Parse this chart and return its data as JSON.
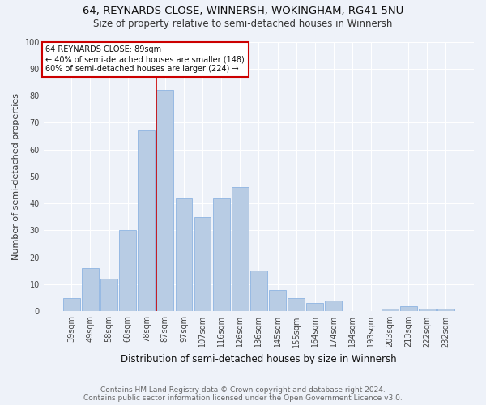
{
  "title": "64, REYNARDS CLOSE, WINNERSH, WOKINGHAM, RG41 5NU",
  "subtitle": "Size of property relative to semi-detached houses in Winnersh",
  "xlabel": "Distribution of semi-detached houses by size in Winnersh",
  "ylabel": "Number of semi-detached properties",
  "categories": [
    "39sqm",
    "49sqm",
    "58sqm",
    "68sqm",
    "78sqm",
    "87sqm",
    "97sqm",
    "107sqm",
    "116sqm",
    "126sqm",
    "136sqm",
    "145sqm",
    "155sqm",
    "164sqm",
    "174sqm",
    "184sqm",
    "193sqm",
    "203sqm",
    "213sqm",
    "222sqm",
    "232sqm"
  ],
  "values": [
    5,
    16,
    12,
    30,
    67,
    82,
    42,
    35,
    42,
    46,
    15,
    8,
    5,
    3,
    4,
    0,
    0,
    1,
    2,
    1,
    1
  ],
  "bar_color": "#b8cce4",
  "bar_edge_color": "#8db4e2",
  "property_line_index": 5,
  "annotation_text_line1": "64 REYNARDS CLOSE: 89sqm",
  "annotation_text_line2": "← 40% of semi-detached houses are smaller (148)",
  "annotation_text_line3": "60% of semi-detached houses are larger (224) →",
  "annotation_box_color": "#ffffff",
  "annotation_box_edge_color": "#cc0000",
  "line_color": "#cc0000",
  "footer_line1": "Contains HM Land Registry data © Crown copyright and database right 2024.",
  "footer_line2": "Contains public sector information licensed under the Open Government Licence v3.0.",
  "ylim": [
    0,
    100
  ],
  "yticks": [
    0,
    10,
    20,
    30,
    40,
    50,
    60,
    70,
    80,
    90,
    100
  ],
  "bg_color": "#eef2f9",
  "grid_color": "#ffffff",
  "title_fontsize": 9.5,
  "subtitle_fontsize": 8.5,
  "xlabel_fontsize": 8.5,
  "ylabel_fontsize": 8,
  "tick_fontsize": 7,
  "footer_fontsize": 6.5,
  "annot_fontsize": 7
}
